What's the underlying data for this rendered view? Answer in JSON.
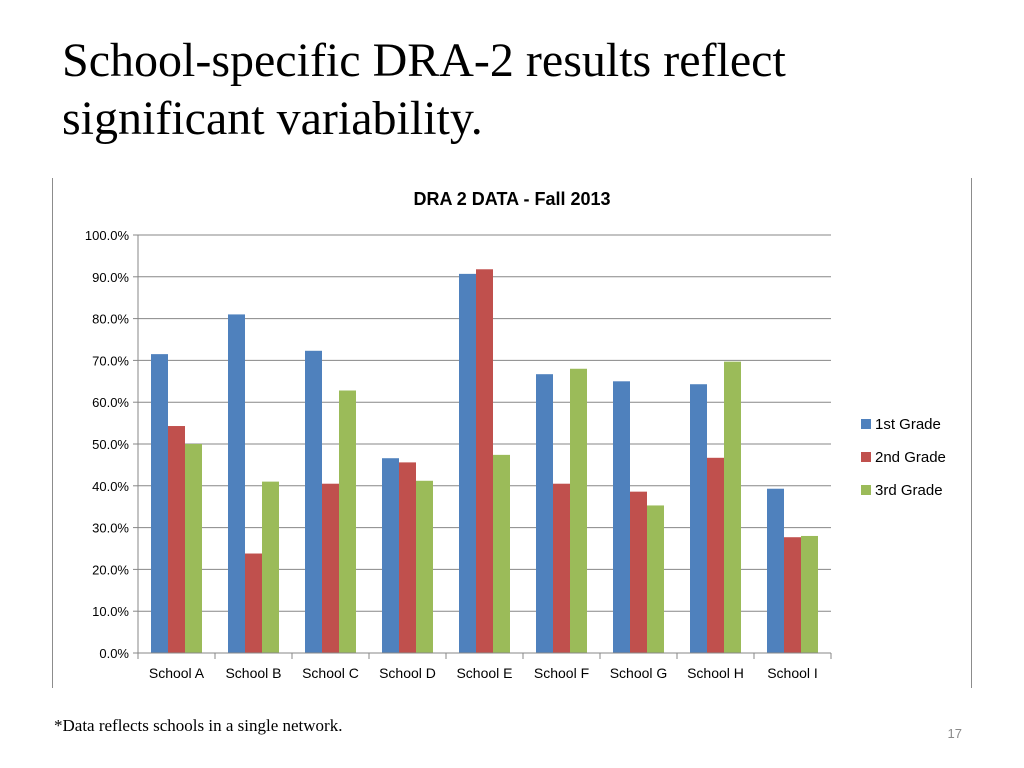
{
  "slide": {
    "title": "School-specific DRA-2 results reflect significant variability.",
    "footnote": "*Data reflects schools in a single network.",
    "page_number": "17"
  },
  "chart_data": {
    "type": "bar",
    "title": "DRA 2 DATA -  Fall 2013",
    "xlabel": "",
    "ylabel": "",
    "categories": [
      "School A",
      "School B",
      "School C",
      "School D",
      "School E",
      "School F",
      "School G",
      "School H",
      "School I"
    ],
    "series": [
      {
        "name": "1st Grade",
        "color": "#4f81bd",
        "values": [
          71.5,
          81.0,
          72.3,
          46.6,
          90.7,
          66.7,
          65.0,
          64.3,
          39.3
        ]
      },
      {
        "name": "2nd Grade",
        "color": "#c0504d",
        "values": [
          54.3,
          23.8,
          40.5,
          45.6,
          91.8,
          40.5,
          38.6,
          46.7,
          27.7
        ]
      },
      {
        "name": "3rd Grade",
        "color": "#9bbb59",
        "values": [
          50.0,
          41.0,
          62.8,
          41.2,
          47.4,
          68.0,
          35.3,
          69.7,
          28.0
        ]
      }
    ],
    "ylim": [
      0,
      100
    ],
    "yticks": [
      "0.0%",
      "10.0%",
      "20.0%",
      "30.0%",
      "40.0%",
      "50.0%",
      "60.0%",
      "70.0%",
      "80.0%",
      "90.0%",
      "100.0%"
    ],
    "grid": true,
    "legend_position": "right"
  }
}
